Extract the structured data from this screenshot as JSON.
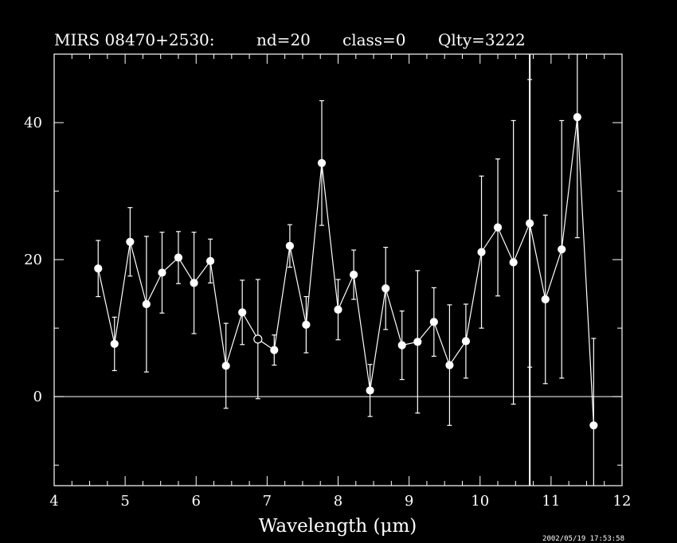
{
  "header": {
    "object": "MIRS 08470+2530:",
    "nd": "nd=20",
    "class": "class=0",
    "quality": "Qlty=3222"
  },
  "timestamp": "2002/05/19 17:53:58",
  "chart_data": {
    "type": "scatter",
    "title": "",
    "xlabel": "Wavelength (μm)",
    "ylabel": "",
    "xlim": [
      4,
      12
    ],
    "ylim": [
      -13,
      50
    ],
    "xticks": [
      4,
      5,
      6,
      7,
      8,
      9,
      10,
      11,
      12
    ],
    "yticks": [
      0,
      20,
      40
    ],
    "zero_line": 0,
    "vertical_line_x": 10.7,
    "series": [
      {
        "x": [
          4.62,
          4.85,
          5.07,
          5.3,
          5.52,
          5.75,
          5.97,
          6.2,
          6.42,
          6.65,
          6.87,
          7.1,
          7.32,
          7.55,
          7.77,
          8.0,
          8.22,
          8.45,
          8.67,
          8.9,
          9.12,
          9.35,
          9.57,
          9.8,
          10.02,
          10.25,
          10.47,
          10.7,
          10.92,
          11.15,
          11.37,
          11.6
        ],
        "y": [
          18.7,
          7.7,
          22.6,
          13.5,
          18.1,
          20.3,
          16.6,
          19.8,
          4.5,
          12.3,
          8.4,
          6.8,
          22.0,
          10.5,
          34.1,
          12.7,
          17.8,
          0.9,
          15.8,
          7.5,
          8.0,
          10.9,
          4.6,
          8.1,
          21.1,
          24.7,
          19.6,
          25.3,
          14.2,
          21.5,
          40.8,
          -4.2
        ],
        "yerr": [
          4.1,
          3.9,
          5.0,
          9.9,
          5.9,
          3.8,
          7.4,
          3.2,
          6.2,
          4.7,
          8.7,
          2.2,
          3.1,
          4.1,
          9.1,
          4.4,
          3.6,
          3.8,
          6.0,
          5.0,
          10.4,
          5.0,
          8.8,
          5.4,
          11.1,
          10.0,
          20.7,
          21.0,
          12.3,
          18.8,
          17.6,
          12.7
        ],
        "open_marker_index": 10
      }
    ]
  }
}
